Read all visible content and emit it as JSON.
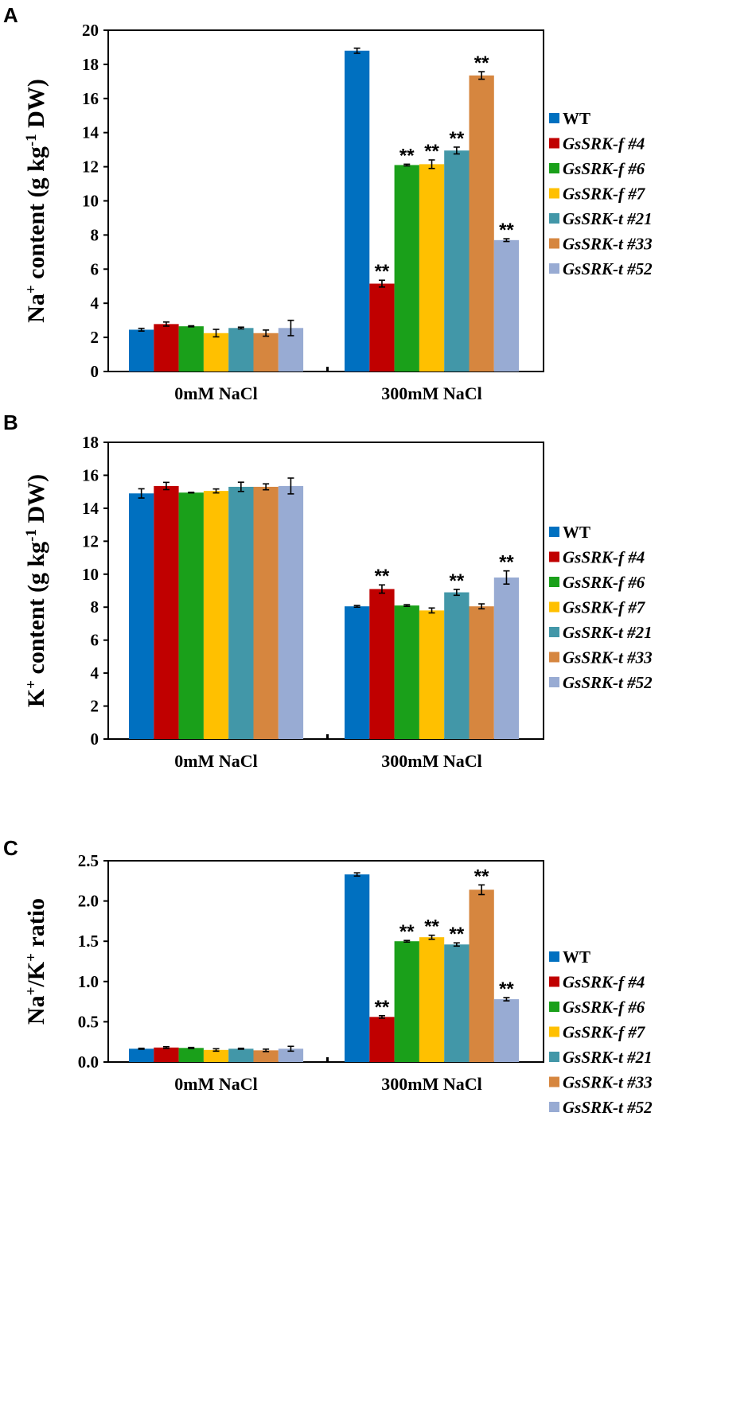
{
  "colors": [
    "#0070C0",
    "#C00000",
    "#1AA01A",
    "#FFC000",
    "#4297A8",
    "#D6863F",
    "#98ABD3"
  ],
  "legend": [
    "WT",
    "GsSRK-f #4",
    "GsSRK-f #6",
    "GsSRK-f #7",
    "GsSRK-t #21",
    "GsSRK-t #33",
    "GsSRK-t #52"
  ],
  "chart_data": [
    {
      "panel": "A",
      "type": "bar",
      "ylabel_parts": [
        "Na",
        "+",
        " content (g kg",
        "-1",
        " DW)"
      ],
      "ylim": [
        0,
        20
      ],
      "yticks": [
        "0",
        "2",
        "4",
        "6",
        "8",
        "10",
        "12",
        "14",
        "16",
        "18",
        "20"
      ],
      "categories": [
        "0mM NaCl",
        "300mM NaCl"
      ],
      "series": [
        {
          "name": "WT",
          "values": [
            2.45,
            18.8
          ],
          "errors": [
            0.08,
            0.15
          ],
          "sig": [
            "",
            ""
          ]
        },
        {
          "name": "GsSRK-f #4",
          "values": [
            2.78,
            5.15
          ],
          "errors": [
            0.12,
            0.2
          ],
          "sig": [
            "",
            "**"
          ]
        },
        {
          "name": "GsSRK-f #6",
          "values": [
            2.65,
            12.1
          ],
          "errors": [
            0.03,
            0.05
          ],
          "sig": [
            "",
            "**"
          ]
        },
        {
          "name": "GsSRK-f #7",
          "values": [
            2.25,
            12.15
          ],
          "errors": [
            0.22,
            0.25
          ],
          "sig": [
            "",
            "**"
          ]
        },
        {
          "name": "GsSRK-t #21",
          "values": [
            2.55,
            12.95
          ],
          "errors": [
            0.05,
            0.2
          ],
          "sig": [
            "",
            "**"
          ]
        },
        {
          "name": "GsSRK-t #33",
          "values": [
            2.25,
            17.35
          ],
          "errors": [
            0.18,
            0.22
          ],
          "sig": [
            "",
            "**"
          ]
        },
        {
          "name": "GsSRK-t #52",
          "values": [
            2.55,
            7.7
          ],
          "errors": [
            0.45,
            0.08
          ],
          "sig": [
            "",
            "**"
          ]
        }
      ]
    },
    {
      "panel": "B",
      "type": "bar",
      "ylabel_parts": [
        "K",
        "+",
        " content (g kg",
        "-1",
        " DW)"
      ],
      "ylim": [
        0,
        18
      ],
      "yticks": [
        "0",
        "2",
        "4",
        "6",
        "8",
        "10",
        "12",
        "14",
        "16",
        "18"
      ],
      "categories": [
        "0mM NaCl",
        "300mM NaCl"
      ],
      "series": [
        {
          "name": "WT",
          "values": [
            14.9,
            8.05
          ],
          "errors": [
            0.28,
            0.05
          ],
          "sig": [
            "",
            ""
          ]
        },
        {
          "name": "GsSRK-f #4",
          "values": [
            15.35,
            9.1
          ],
          "errors": [
            0.22,
            0.25
          ],
          "sig": [
            "",
            "**"
          ]
        },
        {
          "name": "GsSRK-f #6",
          "values": [
            14.95,
            8.1
          ],
          "errors": [
            0.02,
            0.05
          ],
          "sig": [
            "",
            ""
          ]
        },
        {
          "name": "GsSRK-f #7",
          "values": [
            15.05,
            7.8
          ],
          "errors": [
            0.12,
            0.15
          ],
          "sig": [
            "",
            ""
          ]
        },
        {
          "name": "GsSRK-t #21",
          "values": [
            15.3,
            8.9
          ],
          "errors": [
            0.28,
            0.18
          ],
          "sig": [
            "",
            "**"
          ]
        },
        {
          "name": "GsSRK-t #33",
          "values": [
            15.3,
            8.05
          ],
          "errors": [
            0.18,
            0.15
          ],
          "sig": [
            "",
            ""
          ]
        },
        {
          "name": "GsSRK-t #52",
          "values": [
            15.35,
            9.8
          ],
          "errors": [
            0.48,
            0.4
          ],
          "sig": [
            "",
            "**"
          ]
        }
      ]
    },
    {
      "panel": "C",
      "type": "bar",
      "ylabel_parts": [
        "Na",
        "+",
        "/K",
        "+",
        " ratio"
      ],
      "ylim": [
        0,
        2.5
      ],
      "yticks": [
        "0.0",
        "0.5",
        "1.0",
        "1.5",
        "2.0",
        "2.5"
      ],
      "categories": [
        "0mM NaCl",
        "300mM NaCl"
      ],
      "series": [
        {
          "name": "WT",
          "values": [
            0.165,
            2.33
          ],
          "errors": [
            0.006,
            0.02
          ],
          "sig": [
            "",
            ""
          ]
        },
        {
          "name": "GsSRK-f #4",
          "values": [
            0.18,
            0.56
          ],
          "errors": [
            0.01,
            0.015
          ],
          "sig": [
            "",
            "**"
          ]
        },
        {
          "name": "GsSRK-f #6",
          "values": [
            0.175,
            1.5
          ],
          "errors": [
            0.006,
            0.01
          ],
          "sig": [
            "",
            "**"
          ]
        },
        {
          "name": "GsSRK-f #7",
          "values": [
            0.15,
            1.55
          ],
          "errors": [
            0.015,
            0.025
          ],
          "sig": [
            "",
            "**"
          ]
        },
        {
          "name": "GsSRK-t #21",
          "values": [
            0.165,
            1.46
          ],
          "errors": [
            0.006,
            0.02
          ],
          "sig": [
            "",
            "**"
          ]
        },
        {
          "name": "GsSRK-t #33",
          "values": [
            0.145,
            2.14
          ],
          "errors": [
            0.015,
            0.06
          ],
          "sig": [
            "",
            "**"
          ]
        },
        {
          "name": "GsSRK-t #52",
          "values": [
            0.165,
            0.78
          ],
          "errors": [
            0.03,
            0.02
          ],
          "sig": [
            "",
            "**"
          ]
        }
      ]
    }
  ]
}
